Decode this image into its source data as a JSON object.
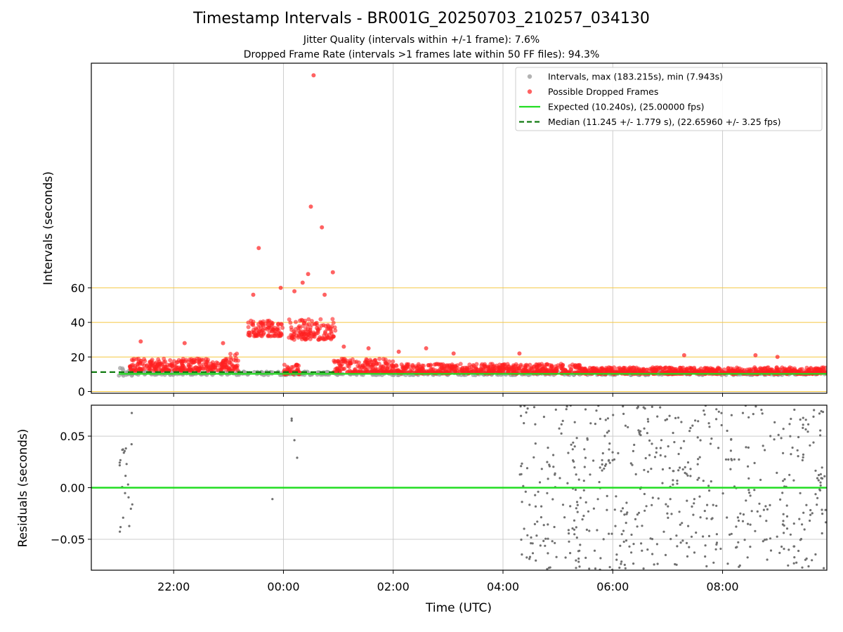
{
  "title": "Timestamp Intervals - BR001G_20250703_210257_034130",
  "subtitle_jitter": "Jitter Quality (intervals within +/-1 frame): 7.6%",
  "subtitle_dropped": "Dropped Frame Rate (intervals >1 frames late within 50 FF files): 94.3%",
  "colors": {
    "intervals": "#a0a0a0",
    "dropped": "#ff2020",
    "expected": "#22dd22",
    "median": "#107a10",
    "guide": "#f5c842",
    "residual_points": "#707070",
    "grid": "#cccccc"
  },
  "chart_data": [
    {
      "type": "scatter",
      "panel": "intervals",
      "ylabel": "Intervals (seconds)",
      "x_tick_labels": [
        "22:00",
        "00:00",
        "02:00",
        "04:00",
        "06:00",
        "08:00"
      ],
      "y_ticks": [
        0,
        20,
        40,
        60
      ],
      "ylim": [
        -1,
        190
      ],
      "xlim_hours": [
        20.5,
        33.9
      ],
      "guide_lines": [
        0,
        20,
        40,
        60
      ],
      "grid": "vertical",
      "legend_placement": "upper-right",
      "legend": [
        "Intervals, max (183.215s), min (7.943s)",
        "Possible Dropped Frames",
        "Expected (10.240s), (25.00000 fps)",
        "Median (11.245 +/- 1.779 s), (22.65960 +/- 3.25 fps)"
      ],
      "series": [
        {
          "name": "Intervals, max (183.215s), min (7.943s)",
          "kind": "scatter",
          "segments": [
            {
              "x_from": 21.0,
              "x_to": 21.25,
              "y_min": 9,
              "y_max": 14.5
            },
            {
              "x_from": 21.1,
              "x_to": 33.9,
              "y_min": 9.5,
              "y_max": 11.5
            }
          ]
        },
        {
          "name": "Possible Dropped Frames",
          "kind": "scatter",
          "segments": [
            {
              "x_from": 21.2,
              "x_to": 23.0,
              "y_min": 12,
              "y_max": 19
            },
            {
              "x_from": 23.0,
              "x_to": 23.2,
              "y_min": 12,
              "y_max": 22
            },
            {
              "x_from": 23.35,
              "x_to": 24.0,
              "y_min": 32,
              "y_max": 41
            },
            {
              "x_from": 24.0,
              "x_to": 24.3,
              "y_min": 10,
              "y_max": 16
            },
            {
              "x_from": 24.1,
              "x_to": 24.95,
              "y_min": 30,
              "y_max": 42
            },
            {
              "x_from": 24.9,
              "x_to": 26.0,
              "y_min": 11,
              "y_max": 19
            },
            {
              "x_from": 26.0,
              "x_to": 29.4,
              "y_min": 10.5,
              "y_max": 16
            },
            {
              "x_from": 29.4,
              "x_to": 33.9,
              "y_min": 10.2,
              "y_max": 14
            }
          ],
          "outliers": [
            [
              21.4,
              29
            ],
            [
              22.2,
              28
            ],
            [
              22.9,
              28
            ],
            [
              23.45,
              56
            ],
            [
              23.55,
              83
            ],
            [
              23.95,
              60
            ],
            [
              24.2,
              58
            ],
            [
              24.35,
              63
            ],
            [
              24.45,
              68
            ],
            [
              24.5,
              107
            ],
            [
              24.55,
              183
            ],
            [
              24.7,
              95
            ],
            [
              24.9,
              69
            ],
            [
              24.75,
              56
            ],
            [
              25.1,
              26
            ],
            [
              25.55,
              25
            ],
            [
              26.1,
              23
            ],
            [
              26.6,
              25
            ],
            [
              27.1,
              22
            ],
            [
              28.3,
              22
            ],
            [
              31.3,
              21
            ],
            [
              32.6,
              21
            ],
            [
              33.0,
              20
            ]
          ]
        },
        {
          "name": "Expected (10.240s), (25.00000 fps)",
          "kind": "hline",
          "y": 10.24,
          "x_from": 21.0,
          "x_to": 33.9
        },
        {
          "name": "Median (11.245 +/- 1.779 s), (22.65960 +/- 3.25 fps)",
          "kind": "hline",
          "y": 11.245,
          "x_from": 20.5,
          "x_to": 25.0
        }
      ]
    },
    {
      "type": "scatter",
      "panel": "residuals",
      "ylabel": "Residuals (seconds)",
      "xlabel": "Time (UTC)",
      "x_tick_labels": [
        "22:00",
        "00:00",
        "02:00",
        "04:00",
        "06:00",
        "08:00"
      ],
      "y_tick_labels": [
        "0.05",
        "0.00",
        "−0.05"
      ],
      "y_ticks": [
        0.05,
        0.0,
        -0.05
      ],
      "ylim": [
        -0.08,
        0.08
      ],
      "grid": "both",
      "zero_line": 0.0,
      "series": [
        {
          "kind": "scatter",
          "segments": [
            {
              "x_from": 21.0,
              "x_to": 21.25,
              "count": 22
            },
            {
              "x_from": 28.3,
              "x_to": 33.9,
              "count": 560
            }
          ],
          "outliers": [
            [
              23.8,
              -0.011
            ],
            [
              24.15,
              0.065
            ],
            [
              24.15,
              0.067
            ],
            [
              24.2,
              0.046
            ],
            [
              24.25,
              0.029
            ]
          ]
        }
      ]
    }
  ]
}
